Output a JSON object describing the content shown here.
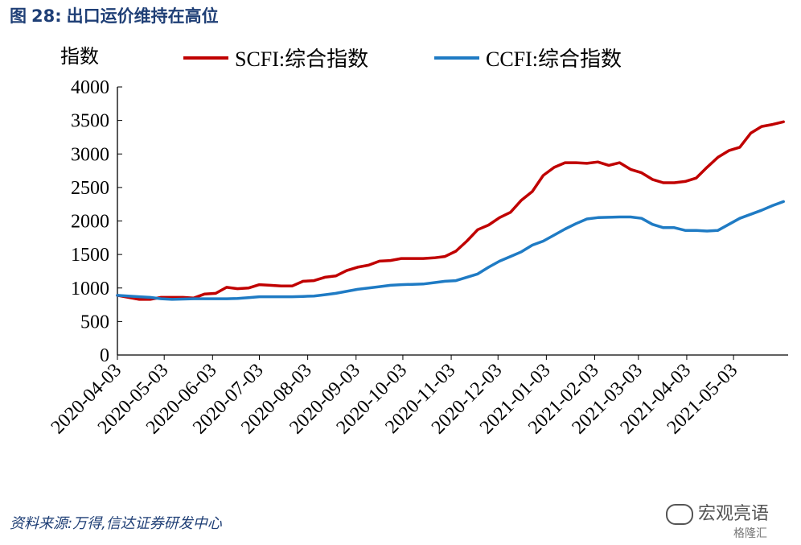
{
  "figure": {
    "title_prefix": "图",
    "title_number": "28:",
    "title_text": "出口运价维持在高位",
    "source": "资料来源:万得,信达证券研发中心",
    "watermark": "宏观亮语",
    "watermark2": "格隆汇"
  },
  "chart_data": {
    "type": "line",
    "title": "",
    "ylabel": "指数",
    "xlabel": "",
    "ylim": [
      0,
      4000
    ],
    "yticks": [
      0,
      500,
      1000,
      1500,
      2000,
      2500,
      3000,
      3500,
      4000
    ],
    "xrange": [
      "2020-04-03",
      "2021-06-07"
    ],
    "xticks": [
      "2020-04-03",
      "2020-05-03",
      "2020-06-03",
      "2020-07-03",
      "2020-08-03",
      "2020-09-03",
      "2020-10-03",
      "2020-11-03",
      "2020-12-03",
      "2021-01-03",
      "2021-02-03",
      "2021-03-03",
      "2021-04-03",
      "2021-05-03"
    ],
    "legend_position": "top",
    "grid": false,
    "x": [
      "2020-04-03",
      "2020-04-10",
      "2020-04-17",
      "2020-04-24",
      "2020-05-01",
      "2020-05-08",
      "2020-05-15",
      "2020-05-22",
      "2020-05-29",
      "2020-06-05",
      "2020-06-12",
      "2020-06-19",
      "2020-06-26",
      "2020-07-03",
      "2020-07-10",
      "2020-07-17",
      "2020-07-24",
      "2020-07-31",
      "2020-08-07",
      "2020-08-14",
      "2020-08-21",
      "2020-08-28",
      "2020-09-04",
      "2020-09-11",
      "2020-09-18",
      "2020-09-25",
      "2020-10-02",
      "2020-10-09",
      "2020-10-16",
      "2020-10-23",
      "2020-10-30",
      "2020-11-06",
      "2020-11-13",
      "2020-11-20",
      "2020-11-27",
      "2020-12-04",
      "2020-12-11",
      "2020-12-18",
      "2020-12-25",
      "2021-01-01",
      "2021-01-08",
      "2021-01-15",
      "2021-01-22",
      "2021-01-29",
      "2021-02-05",
      "2021-02-12",
      "2021-02-19",
      "2021-02-26",
      "2021-03-05",
      "2021-03-12",
      "2021-03-19",
      "2021-03-26",
      "2021-04-02",
      "2021-04-09",
      "2021-04-16",
      "2021-04-23",
      "2021-04-30",
      "2021-05-07",
      "2021-05-14",
      "2021-05-21",
      "2021-05-28",
      "2021-06-04"
    ],
    "series": [
      {
        "name": "SCFI:综合指数",
        "color": "#c00000",
        "values": [
          890,
          860,
          830,
          830,
          860,
          860,
          860,
          850,
          910,
          920,
          1010,
          990,
          1000,
          1050,
          1040,
          1030,
          1030,
          1100,
          1110,
          1160,
          1180,
          1260,
          1310,
          1340,
          1400,
          1410,
          1440,
          1440,
          1440,
          1450,
          1470,
          1550,
          1700,
          1870,
          1940,
          2050,
          2130,
          2310,
          2440,
          2680,
          2800,
          2870,
          2870,
          2860,
          2880,
          2830,
          2870,
          2770,
          2720,
          2620,
          2570,
          2570,
          2590,
          2640,
          2800,
          2950,
          3050,
          3100,
          3310,
          3410,
          3440,
          3480
        ]
      },
      {
        "name": "CCFI:综合指数",
        "color": "#1f7bc4",
        "values": [
          890,
          880,
          870,
          860,
          840,
          830,
          835,
          840,
          840,
          840,
          840,
          845,
          855,
          870,
          870,
          870,
          870,
          875,
          880,
          900,
          920,
          950,
          980,
          1000,
          1020,
          1040,
          1050,
          1055,
          1060,
          1080,
          1100,
          1110,
          1160,
          1210,
          1310,
          1400,
          1470,
          1540,
          1640,
          1700,
          1790,
          1880,
          1960,
          2030,
          2050,
          2055,
          2060,
          2060,
          2040,
          1950,
          1900,
          1900,
          1860,
          1860,
          1850,
          1860,
          1950,
          2040,
          2100,
          2160,
          2230,
          2290
        ]
      }
    ]
  }
}
